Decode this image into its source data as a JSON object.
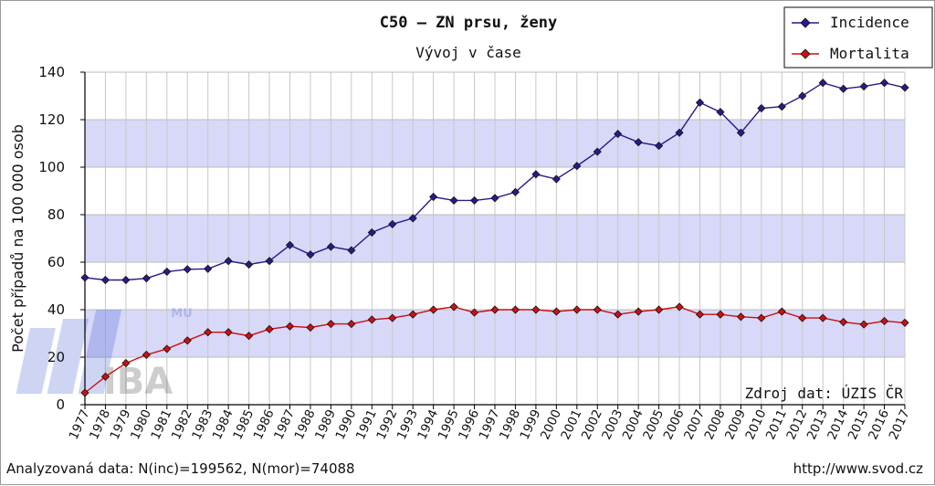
{
  "chart_data": {
    "type": "line",
    "title": "C50 – ZN prsu, ženy",
    "subtitle": "Vývoj v čase",
    "xlabel": "",
    "ylabel": "Počet případů na 100 000 osob",
    "ylim": [
      0,
      140
    ],
    "yticks": [
      0,
      20,
      40,
      60,
      80,
      100,
      120,
      140
    ],
    "categories": [
      "1977",
      "1978",
      "1979",
      "1980",
      "1981",
      "1982",
      "1983",
      "1984",
      "1985",
      "1986",
      "1987",
      "1988",
      "1989",
      "1990",
      "1991",
      "1992",
      "1993",
      "1994",
      "1995",
      "1996",
      "1997",
      "1998",
      "1999",
      "2000",
      "2001",
      "2002",
      "2003",
      "2004",
      "2005",
      "2006",
      "2007",
      "2008",
      "2009",
      "2010",
      "2011",
      "2012",
      "2013",
      "2014",
      "2015",
      "2016",
      "2017"
    ],
    "series": [
      {
        "name": "Incidence",
        "color": "#2a1a8a",
        "values": [
          53.5,
          52.5,
          52.5,
          53.2,
          56.0,
          57.0,
          57.2,
          60.5,
          59.0,
          60.5,
          67.2,
          63.2,
          66.5,
          65.0,
          72.5,
          76.0,
          78.5,
          87.5,
          86.0,
          86.0,
          87.0,
          89.5,
          97.0,
          95.0,
          100.5,
          106.5,
          114.0,
          110.5,
          109.0,
          114.5,
          127.2,
          123.2,
          114.5,
          124.8,
          125.5,
          130.0,
          135.5,
          133.0,
          134.0,
          135.5,
          133.5
        ]
      },
      {
        "name": "Mortalita",
        "color": "#cc1010",
        "values": [
          5.0,
          11.8,
          17.5,
          21.0,
          23.5,
          27.0,
          30.5,
          30.5,
          29.0,
          31.8,
          33.0,
          32.5,
          34.0,
          34.0,
          35.8,
          36.5,
          38.0,
          40.0,
          41.2,
          38.8,
          40.0,
          40.0,
          40.0,
          39.2,
          40.0,
          40.0,
          38.0,
          39.2,
          40.0,
          41.2,
          38.0,
          38.0,
          37.0,
          36.5,
          39.2,
          36.5,
          36.5,
          34.8,
          33.8,
          35.2,
          34.5
        ]
      }
    ],
    "grid": true,
    "legend_position": "top-right",
    "annotation": "Zdroj dat: ÚZIS ČR",
    "watermark": "IBA MU",
    "band_color": "#d8d8f8"
  },
  "footer": {
    "left": "Analyzovaná data: N(inc)=199562, N(mor)=74088",
    "right": "http://www.svod.cz"
  }
}
